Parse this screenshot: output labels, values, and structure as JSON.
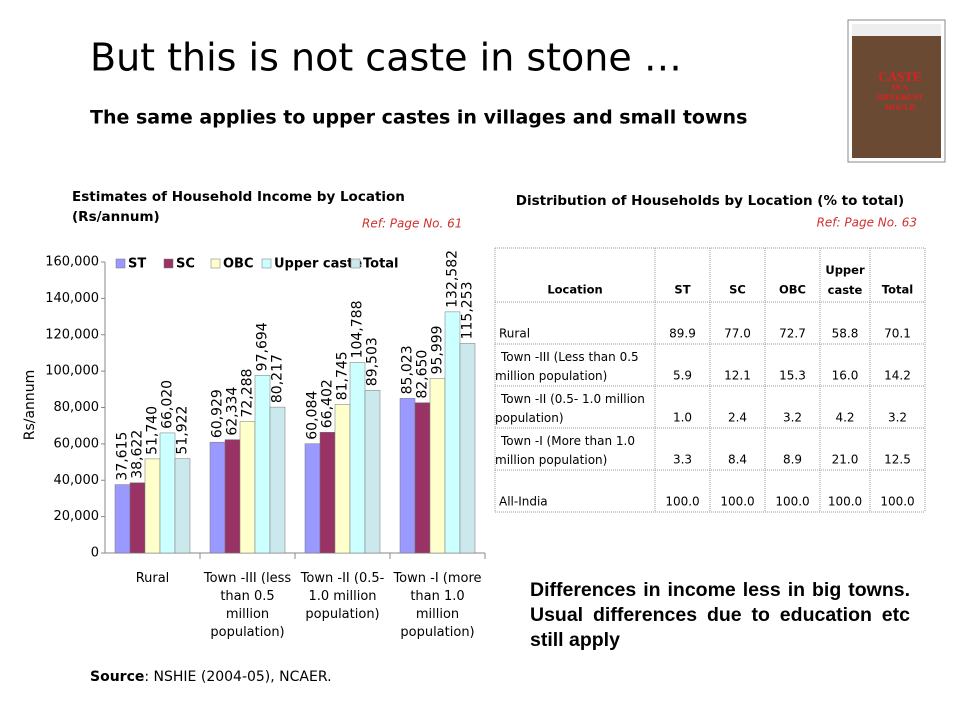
{
  "slide": {
    "title": "But this is not caste in stone …",
    "subtitle": "The same applies to upper castes in villages and small towns",
    "cover": {
      "title": [
        "CASTE",
        "IN A",
        "DIFFERENT",
        "MOULD"
      ]
    },
    "source_label": "Source",
    "source_text": ": NSHIE (2004-05), NCAER.",
    "note": "Differences in income less in big towns. Usual differences due to education etc still apply"
  },
  "chart_data": {
    "type": "bar",
    "title": "Estimates of Household Income by  Location",
    "title_unit": "(Rs/annum)",
    "ref": "Ref: Page No. 61",
    "y_label": "Rs/annum",
    "categories": [
      "Rural",
      "Town -III (less than 0.5 million population)",
      "Town -II (0.5- 1.0 million population)",
      "Town -I (more than 1.0 million population)"
    ],
    "series": [
      {
        "name": "ST",
        "color": "#9999ff",
        "values": [
          37615,
          60929,
          60084,
          85023
        ],
        "value_labels": [
          "37,615",
          "60,929",
          "60,084",
          "85,023"
        ]
      },
      {
        "name": "SC",
        "color": "#993366",
        "values": [
          38622,
          62334,
          66402,
          82650
        ],
        "value_labels": [
          "38,622",
          "62,334",
          "66,402",
          "82,650"
        ]
      },
      {
        "name": "OBC",
        "color": "#ffffcc",
        "values": [
          51740,
          72288,
          81745,
          95999
        ],
        "value_labels": [
          "51,740",
          "72,288",
          "81,745",
          "95,999"
        ]
      },
      {
        "name": "Upper caste",
        "color": "#ccffff",
        "values": [
          66020,
          97694,
          104788,
          132582
        ],
        "value_labels": [
          "66,020",
          "97,694",
          "104,788",
          "132,582"
        ]
      },
      {
        "name": "Total",
        "color": "#cbe9ec",
        "values": [
          51922,
          80217,
          89503,
          115253
        ],
        "value_labels": [
          "51,922",
          "80,217",
          "89,503",
          "115,253"
        ]
      }
    ],
    "ylim": [
      0,
      160000
    ],
    "yticks": [
      0,
      {
        "value": 20000,
        "label": "20,000"
      },
      {
        "value": 40000,
        "label": "40,000"
      },
      {
        "value": 60000,
        "label": "60,000"
      },
      {
        "value": 80000,
        "label": "80,000"
      },
      {
        "value": 100000,
        "label": "100,000"
      },
      {
        "value": 120000,
        "label": "120,000"
      },
      {
        "value": 140000,
        "label": "140,000"
      },
      {
        "value": 160000,
        "label": "160,000"
      }
    ],
    "legend": "top"
  },
  "table": {
    "title": "Distribution of Households by Location (% to total)",
    "ref": "Ref: Page No. 63",
    "header": [
      "Location",
      "ST",
      "SC",
      "OBC",
      "Upper caste",
      "Total"
    ],
    "rows": [
      [
        "Rural",
        "89.9",
        "77.0",
        "72.7",
        "58.8",
        "70.1"
      ],
      [
        "Town -III (Less than 0.5 million population)",
        "5.9",
        "12.1",
        "15.3",
        "16.0",
        "14.2"
      ],
      [
        "Town -II (0.5- 1.0 million population)",
        "1.0",
        "2.4",
        "3.2",
        "4.2",
        "3.2"
      ],
      [
        "Town -I (More than 1.0 million population)",
        "3.3",
        "8.4",
        "8.9",
        "21.0",
        "12.5"
      ],
      [
        "All-India",
        "100.0",
        "100.0",
        "100.0",
        "100.0",
        "100.0"
      ]
    ]
  }
}
